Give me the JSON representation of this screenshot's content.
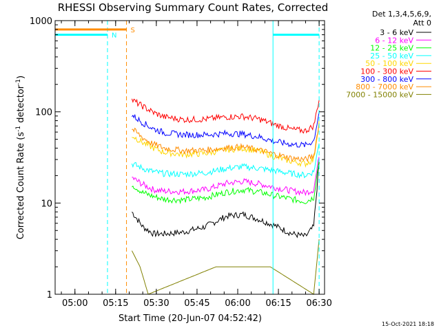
{
  "chart_data": {
    "type": "line",
    "title": "RHESSI Observing Summary Count Rates, Corrected",
    "xlabel": "Start Time (20-Jun-07 04:52:42)",
    "ylabel": "Corrected Count Rate (s",
    "ylabel_sup1": "-1",
    "ylabel_mid": " detector",
    "ylabel_sup2": "-1",
    "ylabel_end": ")",
    "y_scale": "log",
    "ylim": [
      1,
      1000
    ],
    "xlim": [
      "04:52:42",
      "06:32:00"
    ],
    "x_ticks": [
      "05:00",
      "05:15",
      "05:30",
      "05:45",
      "06:00",
      "06:15",
      "06:30"
    ],
    "y_ticks": [
      "1",
      "10",
      "100",
      "1000"
    ],
    "legend_header": [
      "Det 1,3,4,5,6,9,",
      "Att 0"
    ],
    "legend_position": "right",
    "series": [
      {
        "name": "3 - 6 keV",
        "color": "#000000",
        "points": [
          [
            "05:21",
            8
          ],
          [
            "05:25",
            5.5
          ],
          [
            "05:29",
            4.6
          ],
          [
            "05:33",
            4.6
          ],
          [
            "05:40",
            4.8
          ],
          [
            "05:48",
            5.5
          ],
          [
            "05:56",
            7.2
          ],
          [
            "06:02",
            7.5
          ],
          [
            "06:08",
            6.6
          ],
          [
            "06:14",
            5.6
          ],
          [
            "06:20",
            4.6
          ],
          [
            "06:25",
            4.3
          ],
          [
            "06:28",
            5.5
          ],
          [
            "06:30",
            28
          ]
        ]
      },
      {
        "name": "6 - 12 keV",
        "color": "#ff00ff",
        "points": [
          [
            "05:21",
            19
          ],
          [
            "05:25",
            16
          ],
          [
            "05:29",
            14
          ],
          [
            "05:33",
            13.5
          ],
          [
            "05:40",
            13.4
          ],
          [
            "05:48",
            14
          ],
          [
            "05:56",
            16.5
          ],
          [
            "06:02",
            17.3
          ],
          [
            "06:08",
            16.2
          ],
          [
            "06:14",
            14.8
          ],
          [
            "06:20",
            13.6
          ],
          [
            "06:25",
            13
          ],
          [
            "06:28",
            14
          ],
          [
            "06:30",
            32
          ]
        ]
      },
      {
        "name": "12 - 25 keV",
        "color": "#00ff00",
        "points": [
          [
            "05:21",
            16
          ],
          [
            "05:25",
            13
          ],
          [
            "05:29",
            11.8
          ],
          [
            "05:33",
            11
          ],
          [
            "05:40",
            10.8
          ],
          [
            "05:48",
            11.5
          ],
          [
            "05:56",
            13.2
          ],
          [
            "06:02",
            14
          ],
          [
            "06:08",
            13.2
          ],
          [
            "06:14",
            12
          ],
          [
            "06:20",
            11
          ],
          [
            "06:25",
            10.4
          ],
          [
            "06:28",
            11.5
          ],
          [
            "06:30",
            30
          ]
        ]
      },
      {
        "name": "25 - 50 keV",
        "color": "#00ffff",
        "points": [
          [
            "05:21",
            27
          ],
          [
            "05:25",
            24
          ],
          [
            "05:29",
            22
          ],
          [
            "05:33",
            21
          ],
          [
            "05:40",
            20.7
          ],
          [
            "05:48",
            21.5
          ],
          [
            "05:56",
            24
          ],
          [
            "06:02",
            25
          ],
          [
            "06:08",
            24
          ],
          [
            "06:14",
            22.5
          ],
          [
            "06:20",
            21
          ],
          [
            "06:25",
            20.2
          ],
          [
            "06:28",
            22
          ],
          [
            "06:30",
            45
          ]
        ]
      },
      {
        "name": "50 - 100 keV",
        "color": "#ffd700",
        "points": [
          [
            "05:21",
            55
          ],
          [
            "05:25",
            46
          ],
          [
            "05:29",
            40
          ],
          [
            "05:33",
            36
          ],
          [
            "05:40",
            34
          ],
          [
            "05:48",
            35
          ],
          [
            "05:56",
            38.5
          ],
          [
            "06:02",
            40
          ],
          [
            "06:08",
            37
          ],
          [
            "06:14",
            32
          ],
          [
            "06:20",
            28.5
          ],
          [
            "06:25",
            27
          ],
          [
            "06:28",
            30
          ],
          [
            "06:30",
            80
          ]
        ]
      },
      {
        "name": "100 - 300 keV",
        "color": "#ff0000",
        "points": [
          [
            "05:21",
            135
          ],
          [
            "05:25",
            115
          ],
          [
            "05:29",
            98
          ],
          [
            "05:33",
            88
          ],
          [
            "05:40",
            82
          ],
          [
            "05:48",
            83
          ],
          [
            "05:56",
            88
          ],
          [
            "06:02",
            89
          ],
          [
            "06:08",
            83
          ],
          [
            "06:14",
            72
          ],
          [
            "06:20",
            64
          ],
          [
            "06:25",
            62
          ],
          [
            "06:28",
            70
          ],
          [
            "06:30",
            135
          ]
        ]
      },
      {
        "name": "300 - 800 keV",
        "color": "#0000ff",
        "points": [
          [
            "05:21",
            92
          ],
          [
            "05:25",
            76
          ],
          [
            "05:29",
            65
          ],
          [
            "05:33",
            59
          ],
          [
            "05:40",
            56
          ],
          [
            "05:48",
            56
          ],
          [
            "05:56",
            58
          ],
          [
            "06:02",
            57
          ],
          [
            "06:08",
            53
          ],
          [
            "06:14",
            47
          ],
          [
            "06:20",
            44
          ],
          [
            "06:25",
            43
          ],
          [
            "06:28",
            48
          ],
          [
            "06:30",
            100
          ]
        ]
      },
      {
        "name": "800 - 7000 keV",
        "color": "#ff8c00",
        "points": [
          [
            "05:21",
            65
          ],
          [
            "05:25",
            52
          ],
          [
            "05:29",
            44
          ],
          [
            "05:33",
            40
          ],
          [
            "05:40",
            37.5
          ],
          [
            "05:48",
            38
          ],
          [
            "05:56",
            40.5
          ],
          [
            "06:02",
            41
          ],
          [
            "06:08",
            38
          ],
          [
            "06:14",
            34
          ],
          [
            "06:20",
            31
          ],
          [
            "06:25",
            30
          ],
          [
            "06:28",
            33
          ],
          [
            "06:30",
            75
          ]
        ]
      },
      {
        "name": "7000 - 15000 keV",
        "color": "#808000",
        "points": [
          [
            "05:21",
            3
          ],
          [
            "05:24",
            2
          ],
          [
            "05:27",
            1
          ],
          [
            "05:52",
            2
          ],
          [
            "06:12",
            2
          ],
          [
            "06:28",
            1
          ],
          [
            "06:30",
            4
          ]
        ]
      }
    ],
    "annotations": [
      {
        "label": "N",
        "color": "#00ffff",
        "bar_value": 700,
        "start": "04:52:42",
        "end": "05:12"
      },
      {
        "label": "",
        "color": "#00ffff",
        "bar_value": 700,
        "start": "06:13",
        "end": "06:30"
      },
      {
        "label": "S",
        "color": "#ff8c00",
        "bar_value": 800,
        "start": "04:52:42",
        "end": "05:19"
      }
    ],
    "vlines": [
      {
        "time": "05:12",
        "color": "#00ffff",
        "style": "dashed"
      },
      {
        "time": "05:19",
        "color": "#ff8c00",
        "style": "dashed"
      },
      {
        "time": "06:13",
        "color": "#00ffff",
        "style": "solid"
      },
      {
        "time": "06:30",
        "color": "#00ffff",
        "style": "dashed"
      }
    ],
    "timestamp": "15-Oct-2021 18:18"
  }
}
